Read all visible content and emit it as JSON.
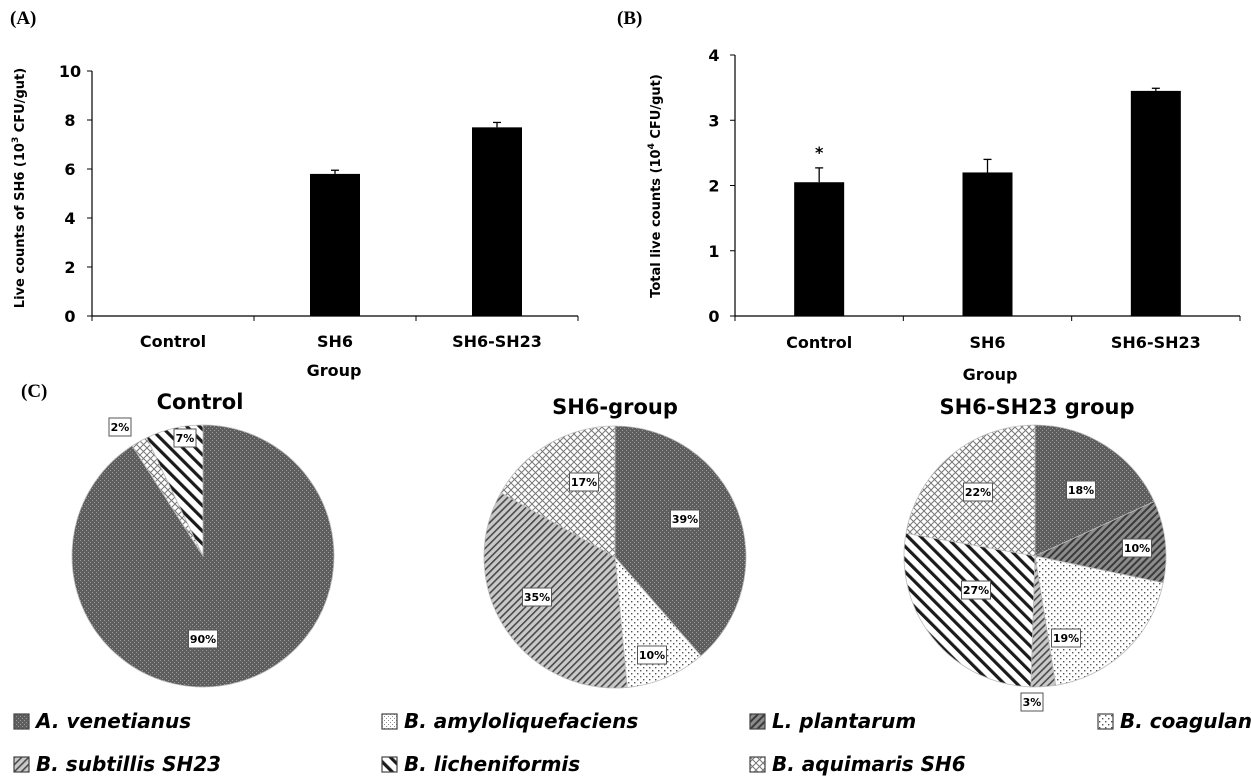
{
  "panel_labels": {
    "a": "(A)",
    "b": "(B)",
    "c": "(C)"
  },
  "chart_data": [
    {
      "type": "bar",
      "panel": "A",
      "categories": [
        "Control",
        "SH6",
        "SH6-SH23"
      ],
      "values": [
        0,
        5.8,
        7.7
      ],
      "errors": [
        0,
        0.15,
        0.2
      ],
      "xlabel": "Group",
      "ylabel_main": "Live counts of SH6 (10",
      "ylabel_sup": "3",
      "ylabel_tail": " CFU/gut)",
      "ylim": [
        0,
        10
      ],
      "yticks": [
        0,
        2,
        4,
        6,
        8,
        10
      ],
      "bar_color": "#000000",
      "annotations": []
    },
    {
      "type": "bar",
      "panel": "B",
      "categories": [
        "Control",
        "SH6",
        "SH6-SH23"
      ],
      "values": [
        2.05,
        2.2,
        3.45
      ],
      "errors": [
        0.22,
        0.2,
        0.04
      ],
      "xlabel": "Group",
      "ylabel_main": "Total live counts (10",
      "ylabel_sup": "4",
      "ylabel_tail": " CFU/gut)",
      "ylim": [
        0,
        4
      ],
      "yticks": [
        0,
        1,
        2,
        3,
        4
      ],
      "bar_color": "#000000",
      "annotations": [
        "*",
        "",
        ""
      ]
    },
    {
      "type": "pie",
      "panel": "C",
      "title": "Control",
      "slices": [
        {
          "species": "A. venetianus",
          "value": 90,
          "label": "90%"
        },
        {
          "species": "B. aquimaris SH6",
          "value": 2,
          "label": "2%"
        },
        {
          "species": "B. licheniformis",
          "value": 7,
          "label": "7%"
        }
      ]
    },
    {
      "type": "pie",
      "panel": "C",
      "title": "SH6-group",
      "slices": [
        {
          "species": "A. venetianus",
          "value": 39,
          "label": "39%"
        },
        {
          "species": "B. coagulans",
          "value": 10,
          "label": "10%"
        },
        {
          "species": "B. subtillis SH23",
          "value": 35,
          "label": "35%"
        },
        {
          "species": "B. aquimaris SH6",
          "value": 17,
          "label": "17%"
        }
      ]
    },
    {
      "type": "pie",
      "panel": "C",
      "title": "SH6-SH23 group",
      "slices": [
        {
          "species": "A. venetianus",
          "value": 18,
          "label": "18%"
        },
        {
          "species": "L. plantarum",
          "value": 10,
          "label": "10%"
        },
        {
          "species": "B. coagulans",
          "value": 19,
          "label": "19%"
        },
        {
          "species": "B. subtillis SH23",
          "value": 3,
          "label": "3%"
        },
        {
          "species": "B. licheniformis",
          "value": 27,
          "label": "27%"
        },
        {
          "species": "B. aquimaris SH6",
          "value": 22,
          "label": "22%"
        }
      ]
    }
  ],
  "legend": [
    {
      "name": "A. venetianus",
      "pattern": "pat-venetianus"
    },
    {
      "name": "B. amyloliquefaciens",
      "pattern": "pat-amylo"
    },
    {
      "name": "L. plantarum",
      "pattern": "pat-plantarum"
    },
    {
      "name": "B. coagulans",
      "pattern": "pat-coagulans"
    },
    {
      "name": "B. subtillis SH23",
      "pattern": "pat-subtilis"
    },
    {
      "name": "B. licheniformis",
      "pattern": "pat-licheniformis"
    },
    {
      "name": "B. aquimaris SH6",
      "pattern": "pat-aquimaris"
    }
  ]
}
